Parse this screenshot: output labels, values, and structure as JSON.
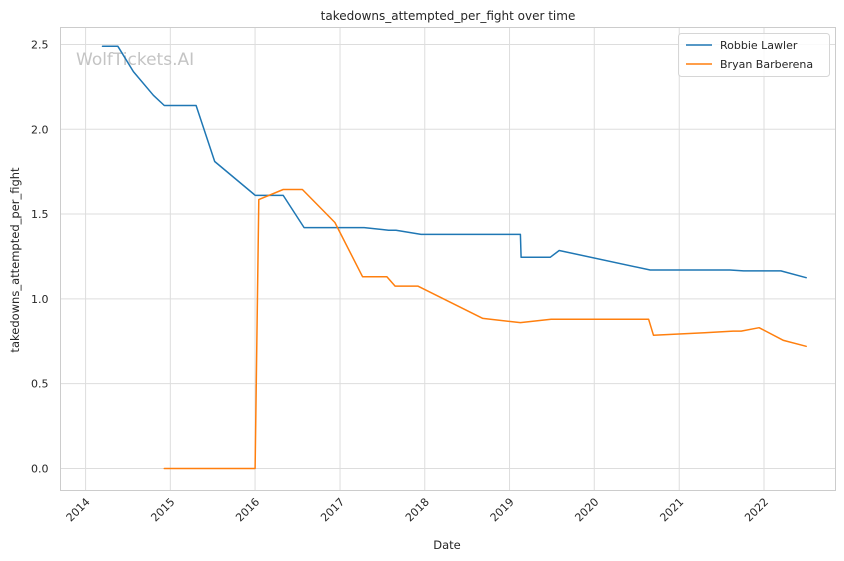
{
  "chart_data": {
    "type": "line",
    "title": "takedowns_attempted_per_fight over time",
    "xlabel": "Date",
    "ylabel": "takedowns_attempted_per_fight",
    "watermark": "WolfTickets.AI",
    "xlim": [
      "2013-09-15",
      "2022-11-05"
    ],
    "ylim": [
      -0.13,
      2.6
    ],
    "x_ticks": [
      "2014",
      "2015",
      "2016",
      "2017",
      "2018",
      "2019",
      "2020",
      "2021",
      "2022"
    ],
    "y_ticks": [
      "0.0",
      "0.5",
      "1.0",
      "1.5",
      "2.0",
      "2.5"
    ],
    "grid": true,
    "legend_position": "top-right",
    "series": [
      {
        "name": "Robbie Lawler",
        "color": "#1f77b4",
        "points": [
          [
            "2014-03-15",
            2.49
          ],
          [
            "2014-05-20",
            2.49
          ],
          [
            "2014-07-26",
            2.34
          ],
          [
            "2014-10-20",
            2.2
          ],
          [
            "2014-12-06",
            2.14
          ],
          [
            "2015-04-05",
            2.14
          ],
          [
            "2015-04-22",
            2.14
          ],
          [
            "2015-07-11",
            1.81
          ],
          [
            "2016-01-02",
            1.61
          ],
          [
            "2016-05-01",
            1.61
          ],
          [
            "2016-07-30",
            1.42
          ],
          [
            "2017-03-10",
            1.42
          ],
          [
            "2017-04-15",
            1.42
          ],
          [
            "2017-07-29",
            1.405
          ],
          [
            "2017-08-30",
            1.405
          ],
          [
            "2017-12-16",
            1.38
          ],
          [
            "2019-02-10",
            1.38
          ],
          [
            "2019-02-17",
            1.38
          ],
          [
            "2019-02-20",
            1.245
          ],
          [
            "2019-06-25",
            1.245
          ],
          [
            "2019-08-03",
            1.285
          ],
          [
            "2020-08-29",
            1.17
          ],
          [
            "2021-08-07",
            1.17
          ],
          [
            "2021-10-05",
            1.165
          ],
          [
            "2022-03-15",
            1.165
          ],
          [
            "2022-07-02",
            1.125
          ]
        ]
      },
      {
        "name": "Bryan Barberena",
        "color": "#ff7f0e",
        "points": [
          [
            "2014-12-06",
            0.0
          ],
          [
            "2015-12-25",
            0.0
          ],
          [
            "2016-01-01",
            0.0
          ],
          [
            "2016-01-17",
            1.585
          ],
          [
            "2016-05-01",
            1.645
          ],
          [
            "2016-07-23",
            1.645
          ],
          [
            "2016-12-10",
            1.45
          ],
          [
            "2017-04-08",
            1.13
          ],
          [
            "2017-07-22",
            1.13
          ],
          [
            "2017-08-26",
            1.075
          ],
          [
            "2017-12-02",
            1.075
          ],
          [
            "2018-09-08",
            0.885
          ],
          [
            "2019-02-17",
            0.86
          ],
          [
            "2019-06-29",
            0.88
          ],
          [
            "2020-08-22",
            0.88
          ],
          [
            "2020-09-12",
            0.785
          ],
          [
            "2021-04-20",
            0.8
          ],
          [
            "2021-08-21",
            0.81
          ],
          [
            "2021-09-25",
            0.81
          ],
          [
            "2021-12-11",
            0.83
          ],
          [
            "2022-03-26",
            0.755
          ],
          [
            "2022-07-02",
            0.72
          ]
        ]
      }
    ]
  }
}
